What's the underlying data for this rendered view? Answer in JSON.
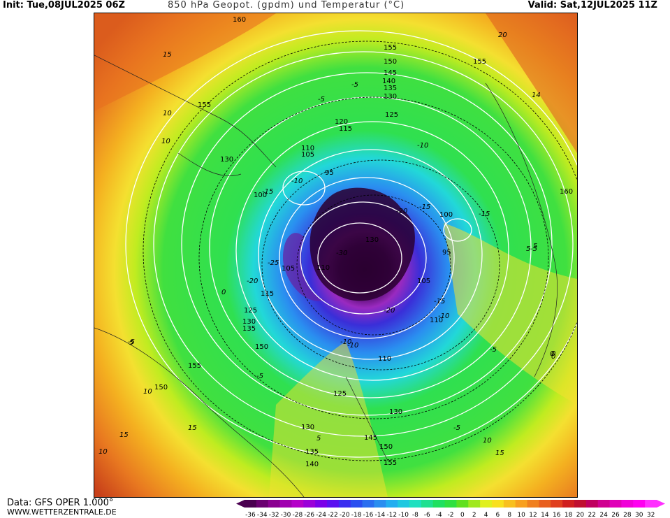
{
  "header": {
    "init": "Init: Tue,08JUL2025 06Z",
    "title": "850 hPa Geopot. (gpdm) und Temperatur (°C)",
    "valid": "Valid: Sat,12JUL2025 11Z"
  },
  "footer": {
    "data_source": "Data: GFS OPER 1.000°",
    "website": "WWW.WETTERZENTRALE.DE"
  },
  "colors": {
    "polar": "#2a0030",
    "deep_purple": "#7a0a9a",
    "blue": "#2b3fd8",
    "cyan": "#33c6e6",
    "green": "#2fe04a",
    "yellow": "#f2e23a",
    "orange": "#f0a020",
    "red": "#d04a1a"
  },
  "geopotential_labels": [
    "160",
    "155",
    "155",
    "150",
    "145",
    "140",
    "135",
    "130",
    "155",
    "125",
    "120",
    "115",
    "110",
    "105",
    "95",
    "100",
    "130",
    "160",
    "100",
    "95",
    "130",
    "105",
    "110",
    "105",
    "115",
    "125",
    "130",
    "135",
    "150",
    "155",
    "110",
    "110",
    "125",
    "130",
    "150",
    "130",
    "135",
    "140",
    "145",
    "150",
    "155"
  ],
  "temperature_labels": [
    "15",
    "10",
    "10",
    "-5",
    "-5",
    "-10",
    "-15",
    "-10",
    "-15",
    "5",
    "-20",
    "-15",
    "-10",
    "-5",
    "0",
    "-20",
    "-25",
    "-30",
    "-20",
    "0",
    "-10",
    "-5",
    "-10",
    "-5",
    "-15",
    "5",
    "10",
    "15",
    "5",
    "0",
    "-5",
    "10",
    "15",
    "20",
    "14",
    "10",
    "15",
    "5",
    "0",
    "-5"
  ],
  "color_scale": {
    "ticks": [
      "-36",
      "-34",
      "-32",
      "-30",
      "-28",
      "-26",
      "-24",
      "-22",
      "-20",
      "-18",
      "-16",
      "-14",
      "-12",
      "-10",
      "-8",
      "-6",
      "-4",
      "-2",
      "0",
      "2",
      "4",
      "6",
      "8",
      "10",
      "12",
      "14",
      "16",
      "18",
      "20",
      "22",
      "24",
      "26",
      "28",
      "30",
      "32"
    ],
    "colors": [
      "#4a0050",
      "#6a0070",
      "#8a0090",
      "#a000b0",
      "#b400c8",
      "#9a00d8",
      "#7a00e8",
      "#5a10f0",
      "#3a2ef0",
      "#2a4ef0",
      "#2a6ef0",
      "#2a8ef0",
      "#22aef0",
      "#1ec8e0",
      "#20e0c0",
      "#20e090",
      "#20e060",
      "#30e040",
      "#60e020",
      "#a0e820",
      "#e0f020",
      "#f8e020",
      "#f8c020",
      "#f8a020",
      "#f08020",
      "#e86020",
      "#e04020",
      "#d02020",
      "#c01030",
      "#c00060",
      "#d00090",
      "#e000b8",
      "#f000d8",
      "#ff00f0",
      "#ff30ff"
    ]
  }
}
